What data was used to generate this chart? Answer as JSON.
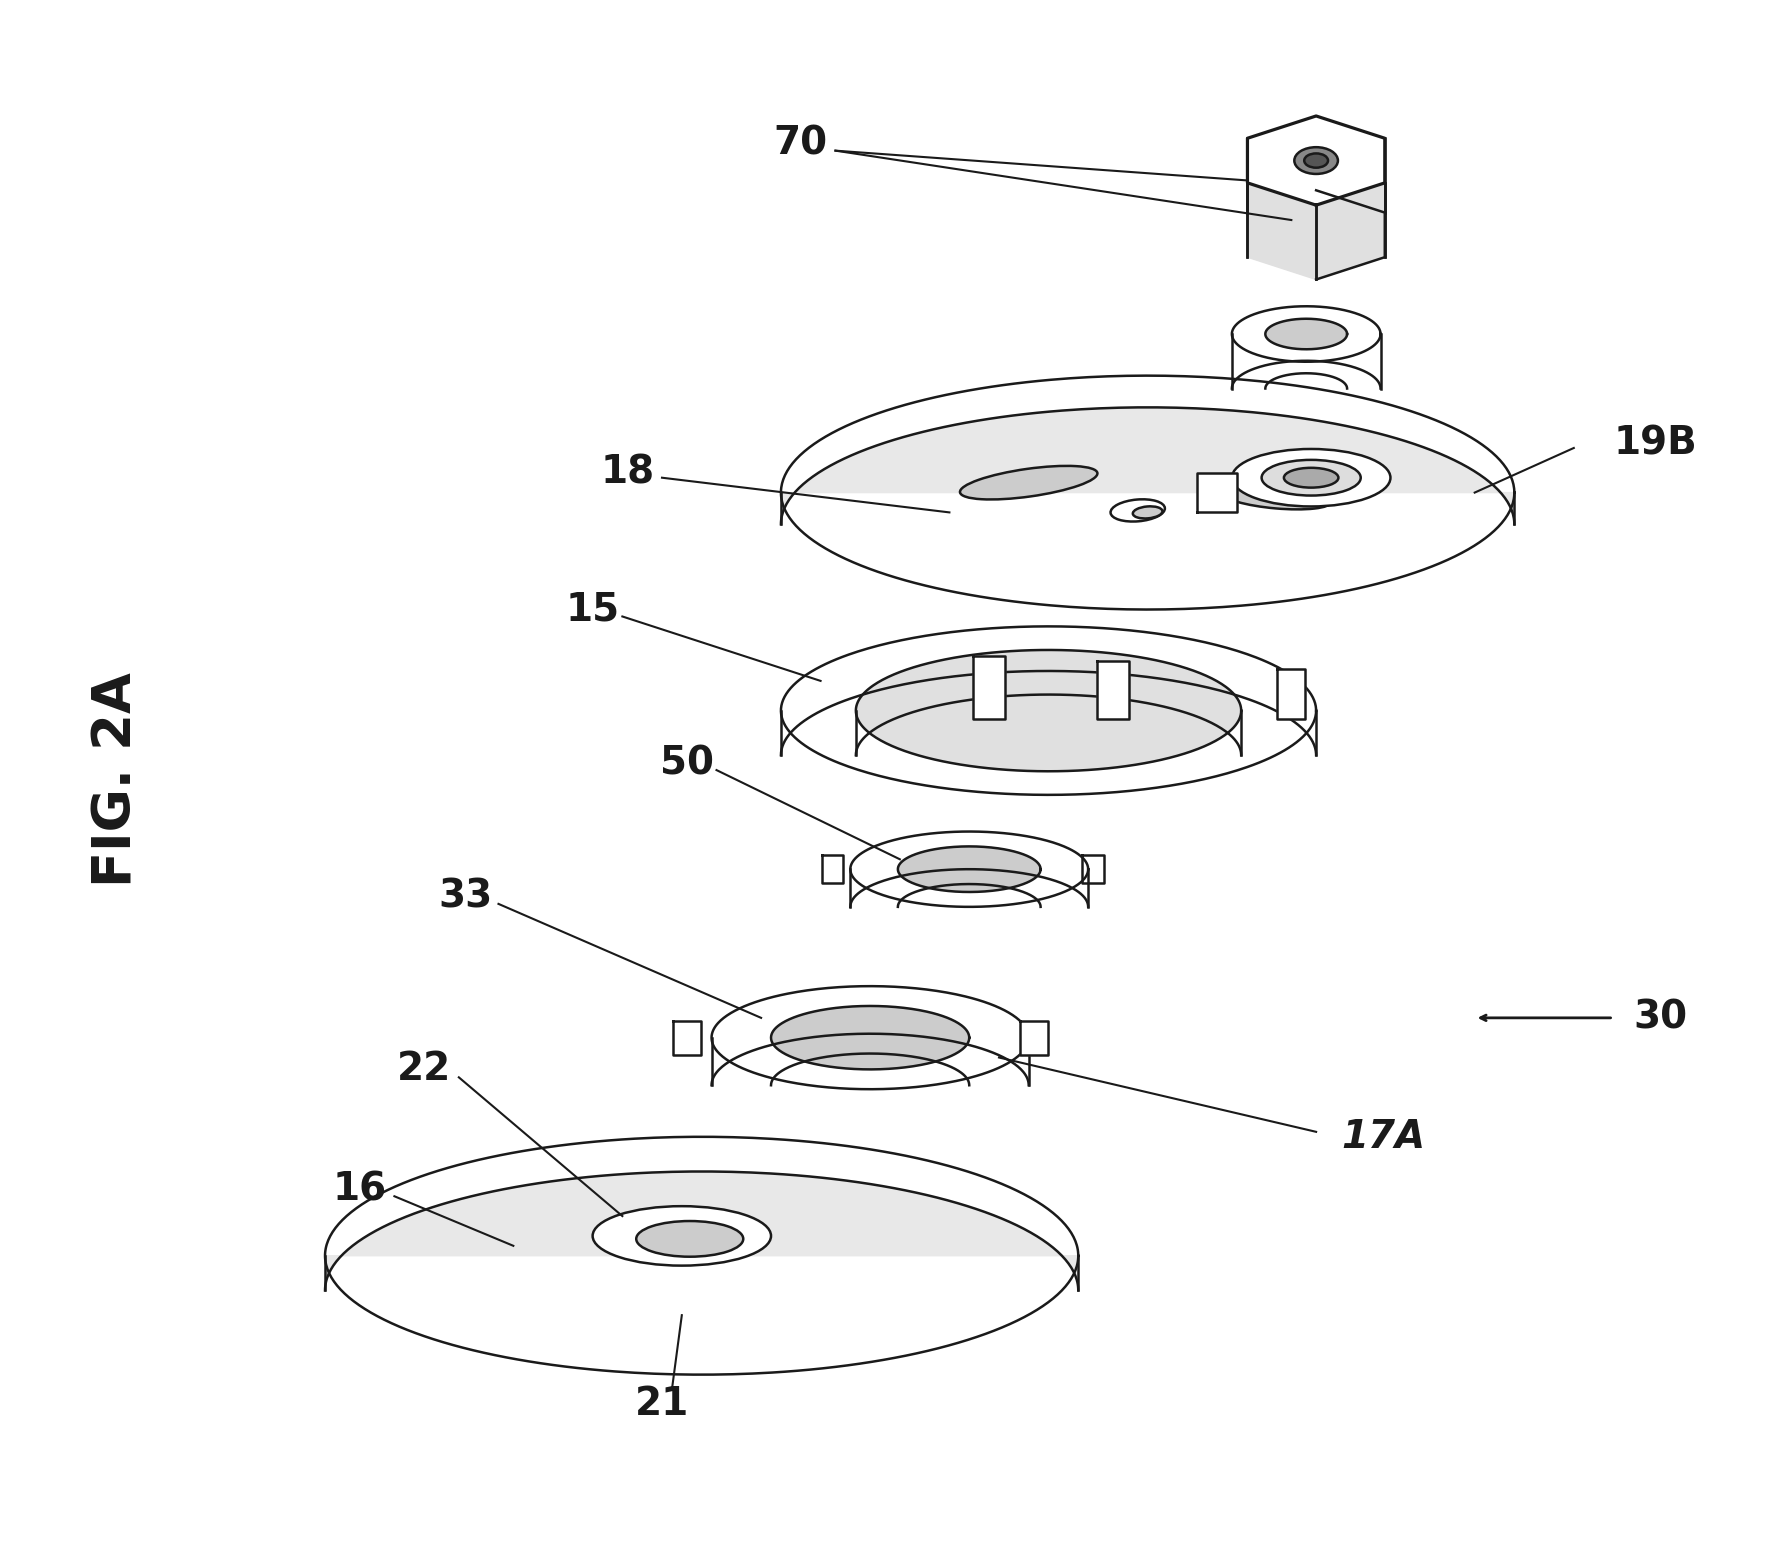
{
  "fig_label": "FIG. 2A",
  "background_color": "#ffffff",
  "line_color": "#1a1a1a",
  "lw": 1.8,
  "figsize": [
    17.69,
    15.59
  ],
  "dpi": 100,
  "font_size_label": 28,
  "font_size_fig": 38
}
